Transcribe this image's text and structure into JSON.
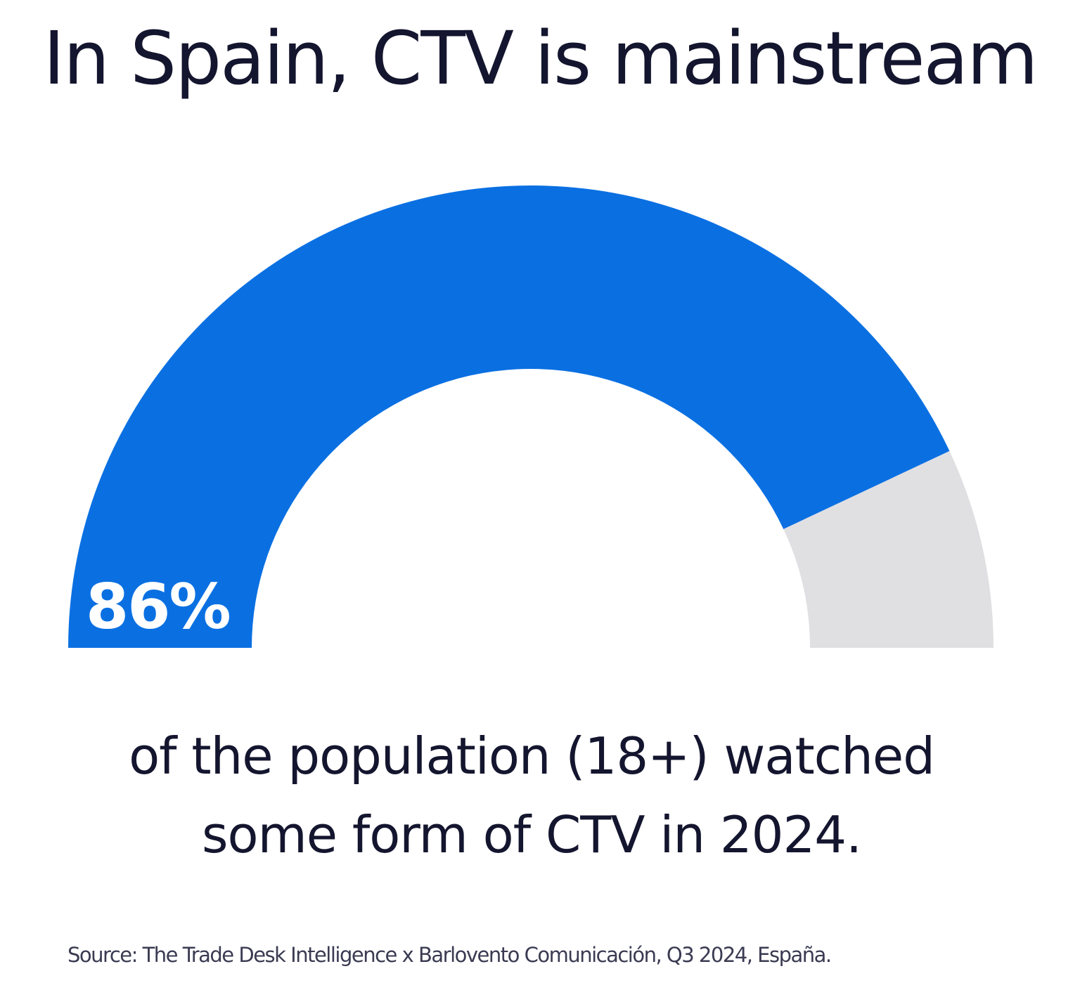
{
  "chart_data": {
    "type": "gauge",
    "title": "In Spain, CTV is mainstream",
    "value": 86,
    "value_label": "86%",
    "range": [
      0,
      100
    ],
    "caption_lines": [
      "of the population (18+) watched",
      "some form of CTV in 2024."
    ],
    "source": "Source: The Trade Desk Intelligence x Barlovento Comunicación, Q3 2024, España.",
    "colors": {
      "fill": "#0A70E2",
      "track": "#E0E0E3",
      "text": "#14152E"
    }
  }
}
